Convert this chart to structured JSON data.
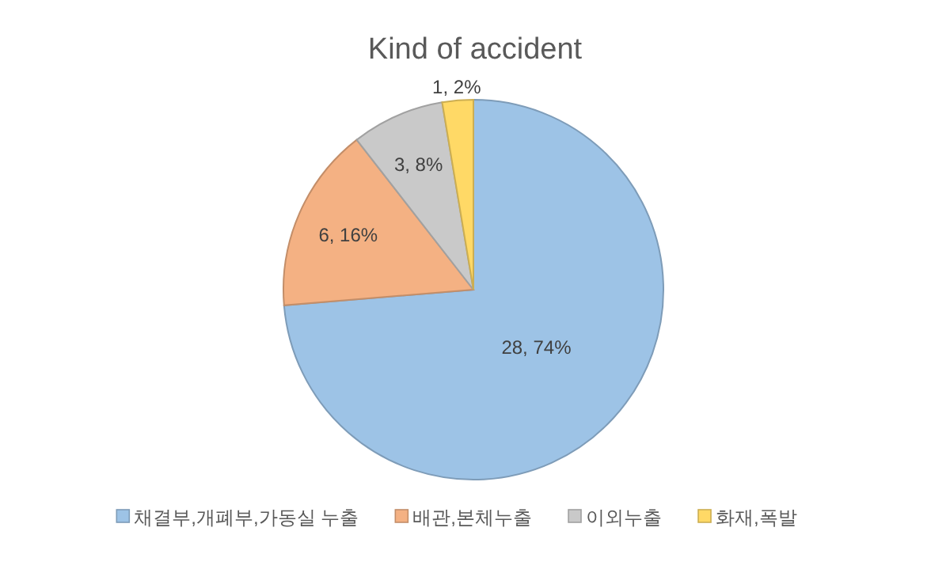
{
  "chart_data": {
    "type": "pie",
    "title": "Kind of accident",
    "categories": [
      "채결부,개폐부,가동실 누출",
      "배관,본체누출",
      "이외누출",
      "화재,폭발"
    ],
    "values": [
      28,
      6,
      3,
      1
    ],
    "colors": [
      "#9dc3e6",
      "#f4b183",
      "#c9c9c9",
      "#ffd966"
    ],
    "value_labels": [
      "28, 74%",
      "6, 16%",
      "3, 8%",
      "1, 2%"
    ],
    "legend": "bottom"
  }
}
